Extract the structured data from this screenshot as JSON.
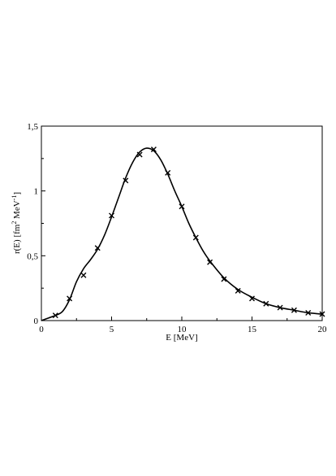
{
  "chart_data": {
    "type": "line",
    "xlabel": "E [MeV]",
    "ylabel": {
      "prefix": "r(E)  [fm",
      "sup1": "2",
      "mid": " MeV",
      "sup2": "-1",
      "suffix": "]"
    },
    "xlim": [
      0,
      20
    ],
    "ylim": [
      0,
      1.5
    ],
    "x_ticks": [
      {
        "value": 0,
        "label": "0"
      },
      {
        "value": 5,
        "label": "5"
      },
      {
        "value": 10,
        "label": "10"
      },
      {
        "value": 15,
        "label": "15"
      },
      {
        "value": 20,
        "label": "20"
      }
    ],
    "y_ticks": [
      {
        "value": 0,
        "label": "0"
      },
      {
        "value": 0.5,
        "label": "0,5"
      },
      {
        "value": 1,
        "label": "1"
      },
      {
        "value": 1.5,
        "label": "1,5"
      }
    ],
    "grid": false,
    "series": [
      {
        "style": "markers",
        "marker": "x",
        "x": [
          1,
          2,
          3,
          4,
          5,
          6,
          7,
          8,
          9,
          10,
          11,
          12,
          13,
          14,
          15,
          16,
          17,
          18,
          19,
          20
        ],
        "y": [
          0.04,
          0.17,
          0.35,
          0.56,
          0.81,
          1.08,
          1.28,
          1.32,
          1.14,
          0.88,
          0.64,
          0.45,
          0.32,
          0.23,
          0.17,
          0.13,
          0.1,
          0.08,
          0.06,
          0.05
        ]
      },
      {
        "style": "line",
        "x": [
          0,
          0.5,
          1,
          1.5,
          2,
          2.5,
          3,
          3.5,
          4,
          4.5,
          5,
          5.5,
          6,
          6.5,
          7,
          7.5,
          8,
          8.5,
          9,
          9.5,
          10,
          10.5,
          11,
          11.5,
          12,
          13,
          14,
          15,
          16,
          17,
          18,
          19,
          20
        ],
        "y": [
          0.0,
          0.02,
          0.04,
          0.07,
          0.16,
          0.3,
          0.4,
          0.47,
          0.55,
          0.66,
          0.8,
          0.95,
          1.1,
          1.22,
          1.3,
          1.33,
          1.31,
          1.24,
          1.13,
          1.0,
          0.88,
          0.75,
          0.64,
          0.54,
          0.46,
          0.33,
          0.24,
          0.18,
          0.13,
          0.1,
          0.08,
          0.06,
          0.05
        ]
      }
    ]
  }
}
